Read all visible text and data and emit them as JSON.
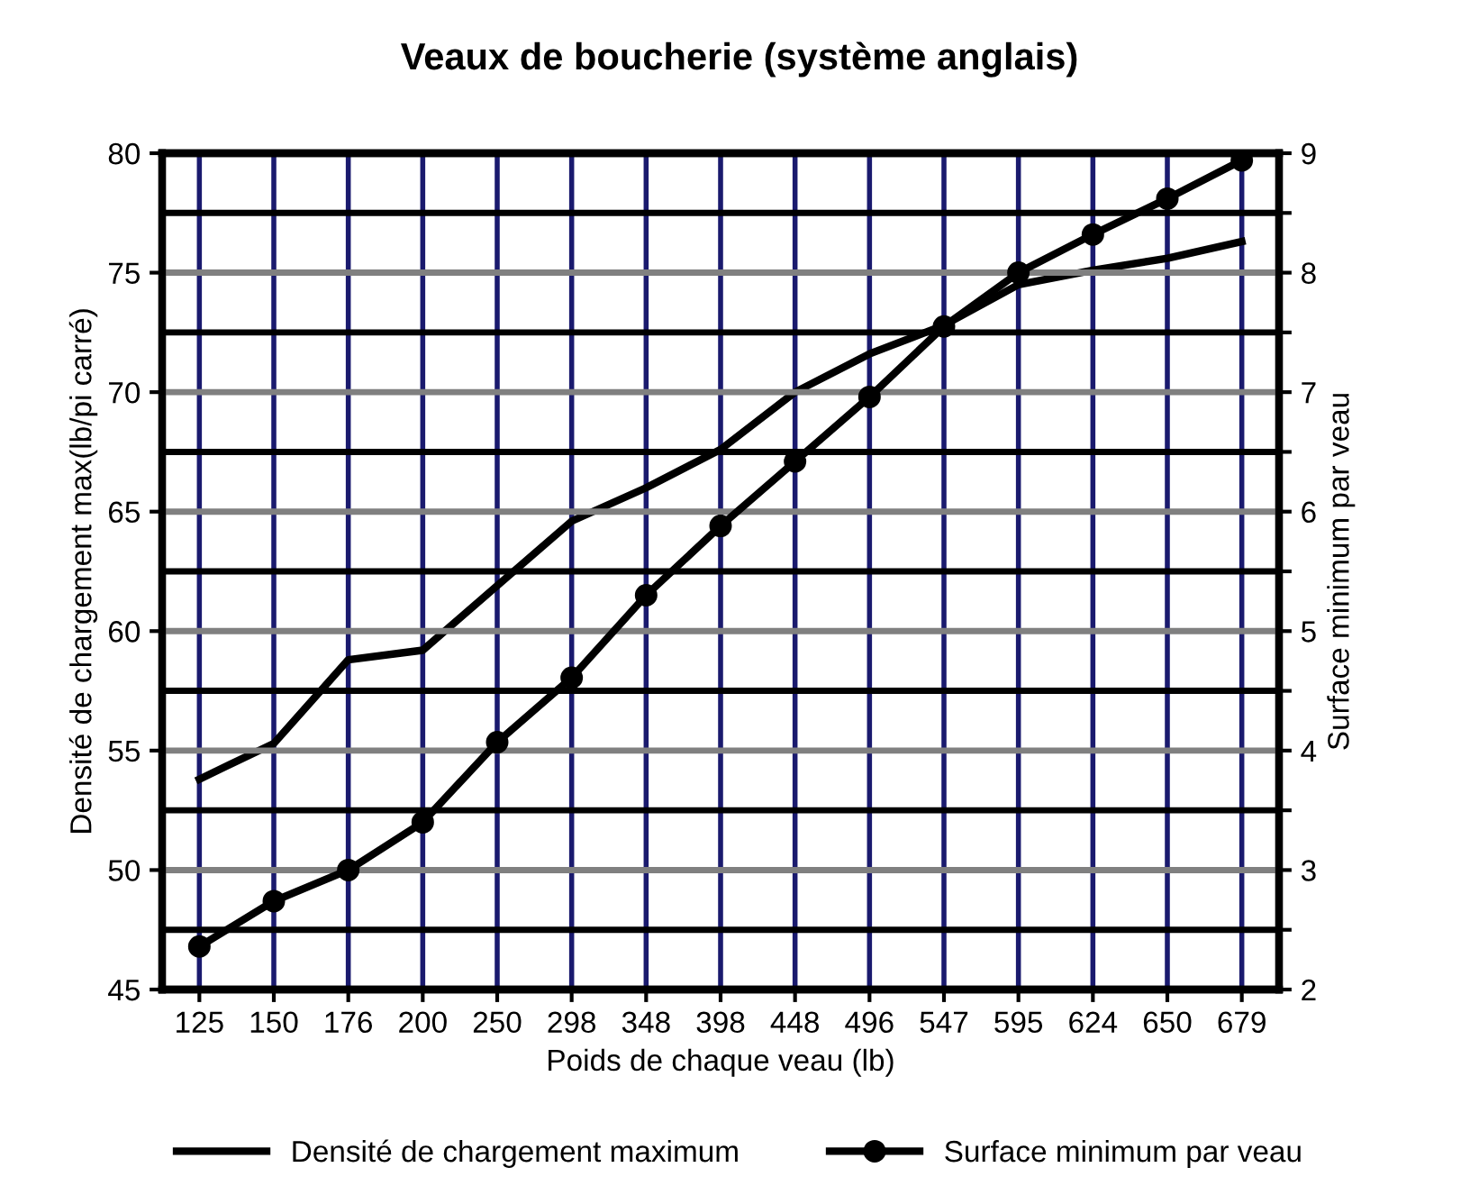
{
  "chart_data": {
    "type": "line",
    "title": "Veaux de boucherie (système anglais)",
    "xlabel": "Poids de chaque veau (lb)",
    "ylabel": "Densité de chargement max(lb/pi carré)",
    "y2label": "Surface minimum par veau",
    "categories": [
      "125",
      "150",
      "176",
      "200",
      "250",
      "298",
      "348",
      "398",
      "448",
      "496",
      "547",
      "595",
      "624",
      "650",
      "679"
    ],
    "series": [
      {
        "name": "Densité de chargement maximum",
        "color": "#000000",
        "marker": "none",
        "values": [
          53.8,
          55.3,
          58.8,
          59.2,
          61.9,
          64.6,
          66.0,
          67.6,
          70.0,
          71.6,
          72.8,
          74.5,
          75.1,
          75.6,
          76.3
        ]
      },
      {
        "name": "Surface minimum par veau",
        "color": "#000000",
        "marker": "circle",
        "axis": "y2",
        "values": [
          2.36,
          2.74,
          3.0,
          3.4,
          4.07,
          4.61,
          5.3,
          5.88,
          6.42,
          6.96,
          7.55,
          8.0,
          8.32,
          8.62,
          8.94
        ]
      }
    ],
    "ylim": [
      45,
      80
    ],
    "yticks": [
      45,
      50,
      55,
      60,
      65,
      70,
      75,
      80
    ],
    "y2lim": [
      2,
      9
    ],
    "y2ticks": [
      2,
      {
        "value": 2.5,
        "label": null
      },
      3,
      {
        "value": 3.5,
        "label": null
      },
      4,
      {
        "value": 4.5,
        "label": null
      },
      5,
      {
        "value": 5.5,
        "label": null
      },
      6,
      {
        "value": 6.5,
        "label": null
      },
      7,
      {
        "value": 7.5,
        "label": null
      },
      8,
      {
        "value": 8.5,
        "label": null
      },
      9
    ],
    "grid": true,
    "legend": "bottom",
    "line_style": "solid"
  }
}
